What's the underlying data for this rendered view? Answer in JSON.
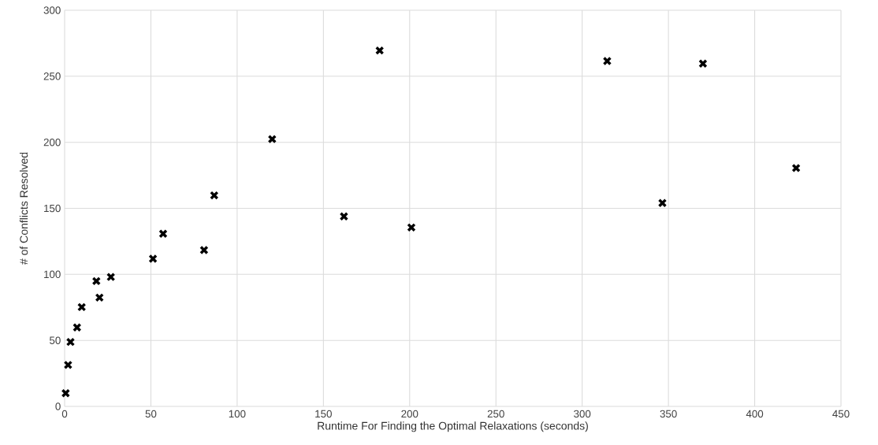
{
  "chart_data": {
    "type": "scatter",
    "xlabel": "Runtime For Finding the Optimal Relaxations (seconds)",
    "ylabel": "# of Conflicts Resolved",
    "x": [
      0.6,
      2,
      3.4,
      7.2,
      9.9,
      18.4,
      20.2,
      26.8,
      51.2,
      57.1,
      80.8,
      86.7,
      120.3,
      161.9,
      182.6,
      201,
      314.5,
      346.5,
      370,
      424
    ],
    "series": [
      {
        "color": "#000000",
        "values": [
          10,
          31.4,
          48.8,
          59.8,
          75.2,
          94.9,
          82.4,
          98,
          111.8,
          130.8,
          118.4,
          159.8,
          202.4,
          143.9,
          269.5,
          135.5,
          261.5,
          154,
          259.6,
          180.5
        ]
      }
    ],
    "xlim": [
      0,
      450
    ],
    "ylim": [
      0,
      300
    ],
    "xticks": [
      0,
      50,
      100,
      150,
      200,
      250,
      300,
      350,
      400,
      450
    ],
    "yticks": [
      0,
      50,
      100,
      150,
      200,
      250,
      300
    ],
    "grid": true,
    "marker": "cross"
  }
}
